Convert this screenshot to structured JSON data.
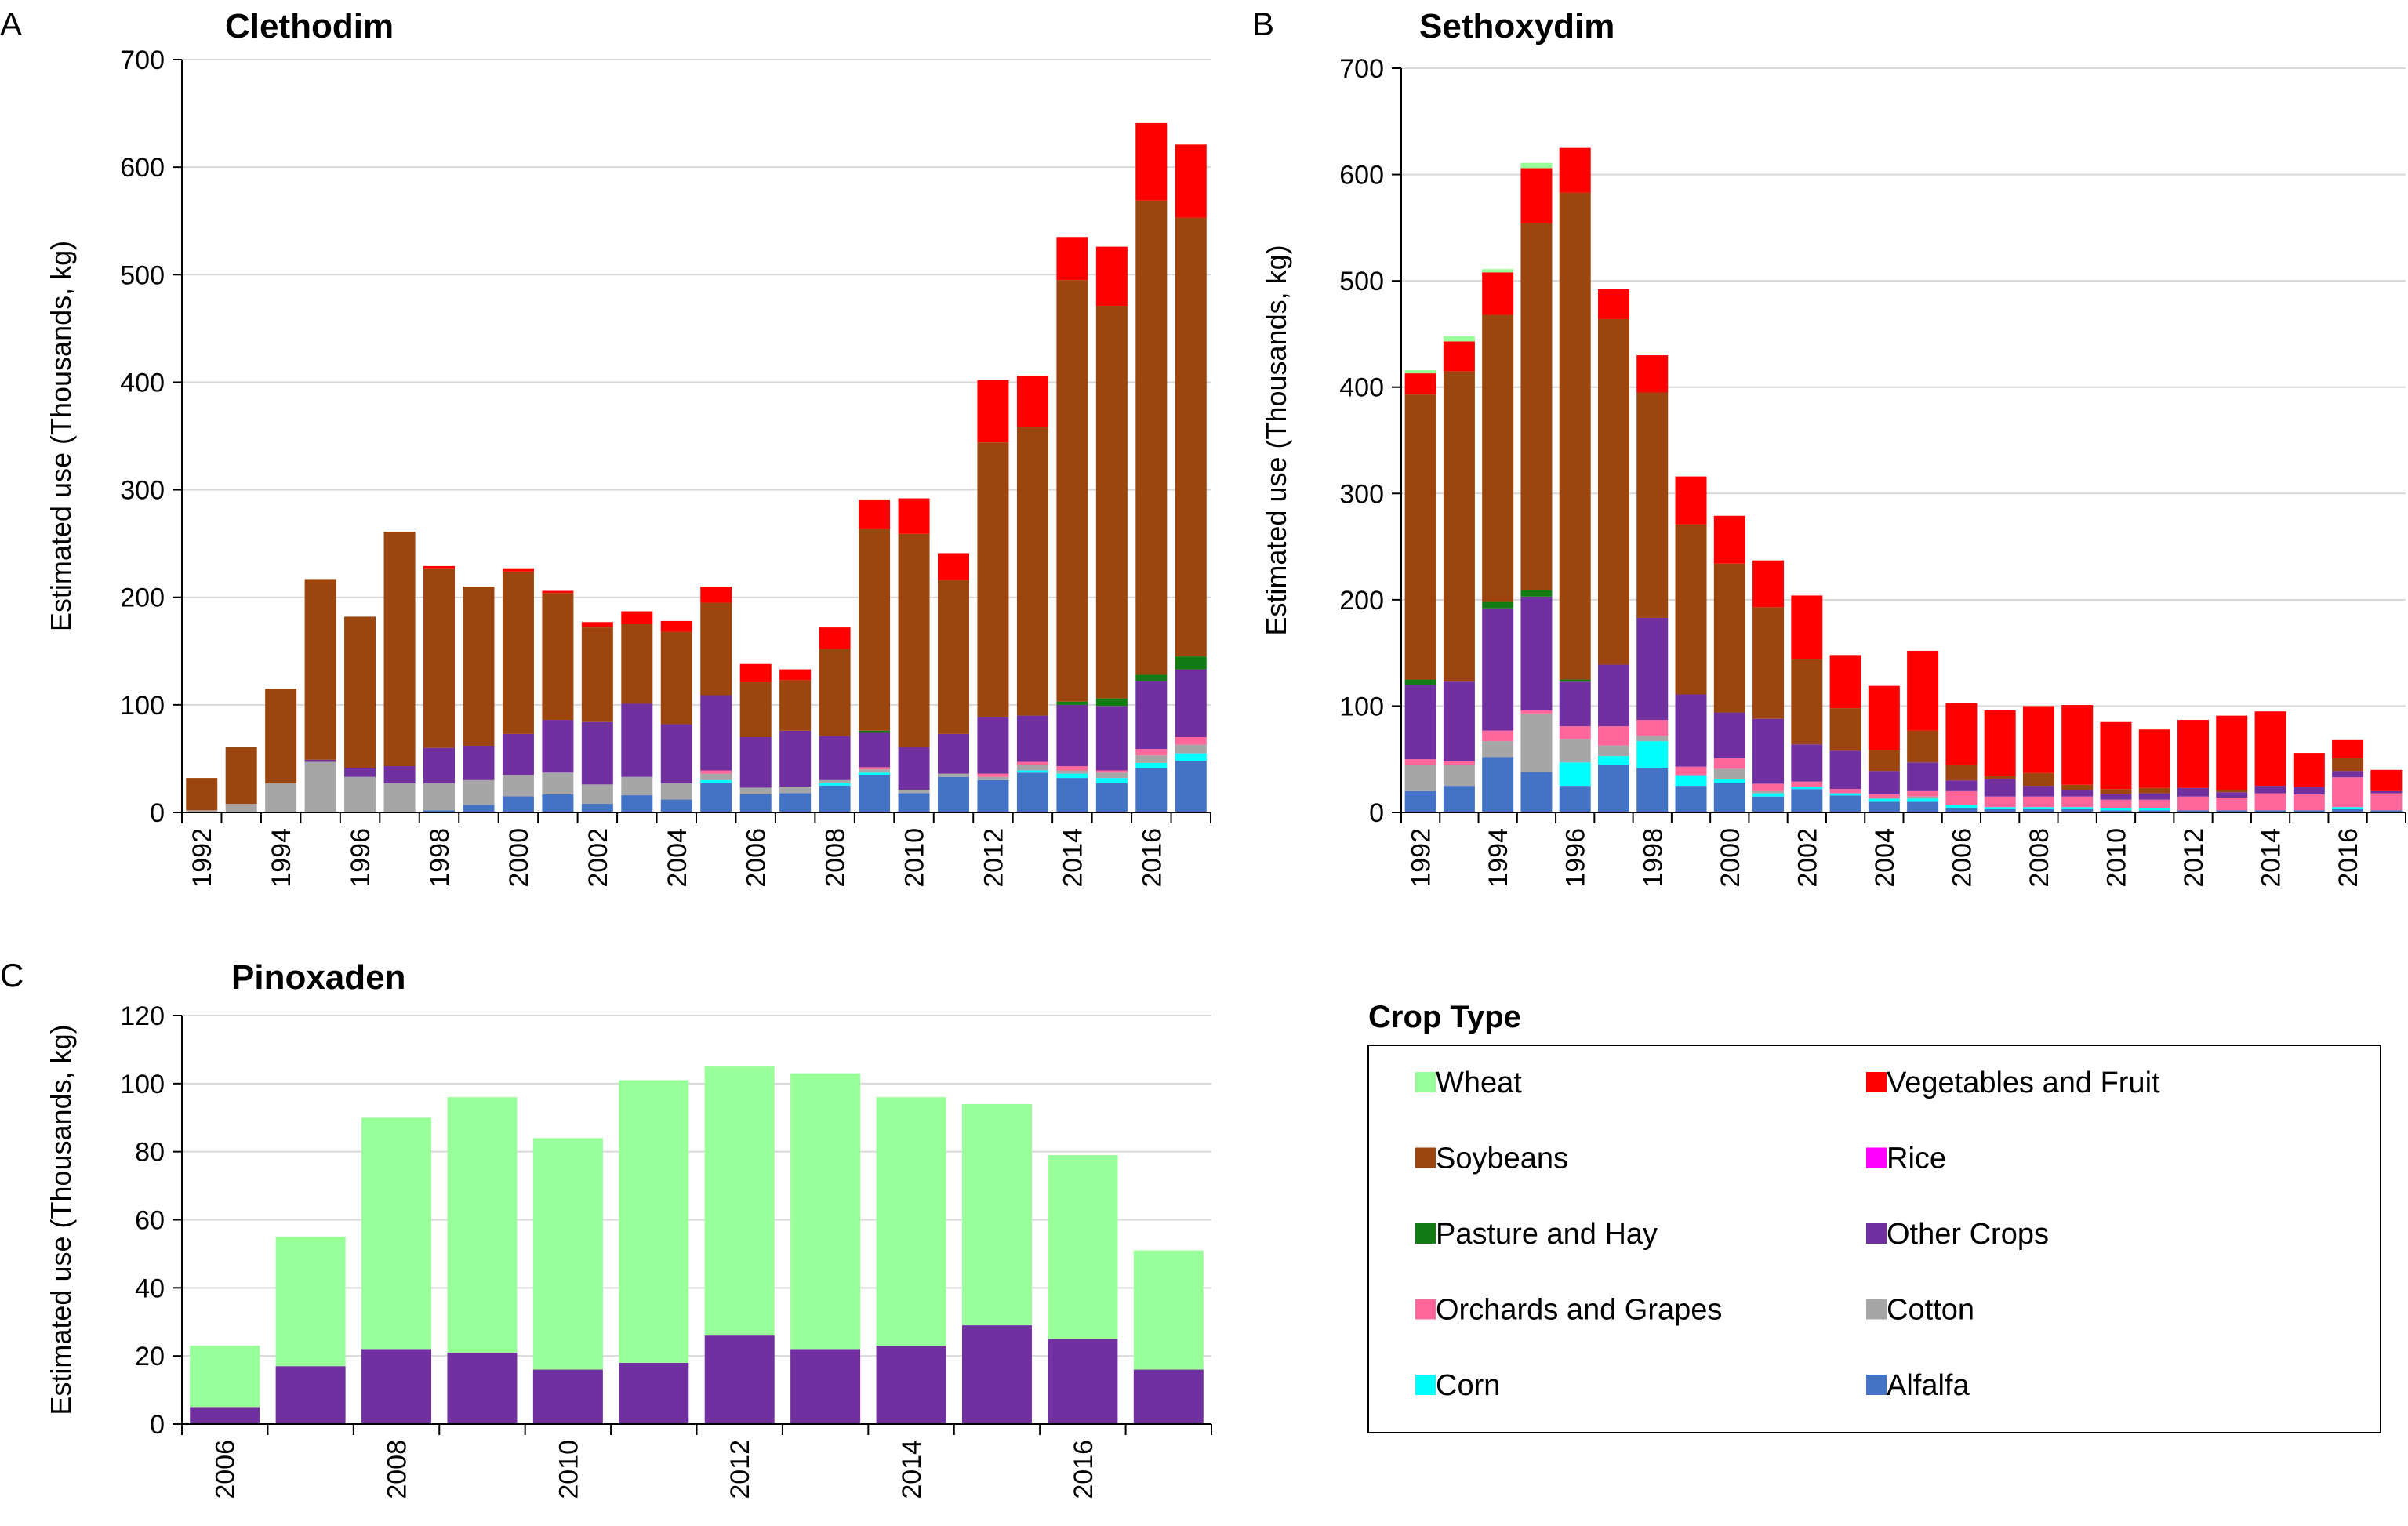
{
  "colors": {
    "Wheat": "#99FF99",
    "Vegetables and Fruit": "#FF0000",
    "Soybeans": "#9C450E",
    "Rice": "#FF00FF",
    "Pasture and Hay": "#137B13",
    "Other Crops": "#7030A0",
    "Orchards and Grapes": "#FF6699",
    "Cotton": "#A6A6A6",
    "Corn": "#00FFFF",
    "Alfalfa": "#4472C4"
  },
  "chart_data": [
    {
      "panel": "A",
      "type": "bar",
      "stacked": true,
      "title": "Clethodim",
      "xlabel": "",
      "ylabel": "Estimated use (Thousands, kg)",
      "ylim": [
        0,
        700
      ],
      "yticks": [
        0,
        100,
        200,
        300,
        400,
        500,
        600,
        700
      ],
      "categories": [
        "1992",
        "1993",
        "1994",
        "1995",
        "1996",
        "1997",
        "1998",
        "1999",
        "2000",
        "2001",
        "2002",
        "2003",
        "2004",
        "2005",
        "2006",
        "2007",
        "2008",
        "2009",
        "2010",
        "2011",
        "2012",
        "2013",
        "2014",
        "2015",
        "2016",
        "2017"
      ],
      "tick_labels": [
        "1992",
        "",
        "1994",
        "",
        "1996",
        "",
        "1998",
        "",
        "2000",
        "",
        "2002",
        "",
        "2004",
        "",
        "2006",
        "",
        "2008",
        "",
        "2010",
        "",
        "2012",
        "",
        "2014",
        "",
        "2016",
        ""
      ],
      "series": [
        {
          "name": "Alfalfa",
          "values": [
            0,
            0,
            0,
            0,
            0,
            0,
            2,
            7,
            15,
            17,
            8,
            16,
            12,
            27,
            17,
            18,
            25,
            35,
            18,
            33,
            30,
            37,
            32,
            27,
            41,
            48
          ]
        },
        {
          "name": "Corn",
          "values": [
            0,
            0,
            0,
            0,
            0,
            0,
            0,
            0,
            0,
            0,
            0,
            0,
            0,
            3,
            0,
            0,
            2,
            2,
            0,
            0,
            0,
            2,
            4,
            5,
            5,
            7
          ]
        },
        {
          "name": "Cotton",
          "values": [
            2,
            8,
            27,
            47,
            33,
            27,
            25,
            23,
            20,
            20,
            18,
            17,
            15,
            6,
            6,
            6,
            3,
            3,
            3,
            3,
            3,
            5,
            3,
            5,
            7,
            8
          ]
        },
        {
          "name": "Orchards and Grapes",
          "values": [
            0,
            0,
            0,
            0,
            0,
            0,
            0,
            0,
            0,
            0,
            0,
            0,
            0,
            3,
            0,
            0,
            0,
            2,
            0,
            0,
            3,
            3,
            4,
            2,
            6,
            7
          ]
        },
        {
          "name": "Other Crops",
          "values": [
            0,
            0,
            0,
            2,
            8,
            16,
            33,
            32,
            38,
            49,
            58,
            68,
            55,
            70,
            47,
            52,
            41,
            32,
            40,
            37,
            53,
            43,
            57,
            60,
            63,
            63
          ]
        },
        {
          "name": "Pasture and Hay",
          "values": [
            0,
            0,
            0,
            0,
            0,
            0,
            0,
            0,
            0,
            0,
            0,
            0,
            0,
            0,
            0,
            0,
            0,
            2,
            0,
            0,
            0,
            0,
            3,
            7,
            6,
            12
          ]
        },
        {
          "name": "Rice",
          "values": [
            0,
            0,
            0,
            0,
            0,
            0,
            0,
            0,
            0,
            0,
            0,
            0,
            0,
            0,
            0,
            0,
            0,
            0,
            0,
            0,
            0,
            0,
            0,
            0,
            0,
            0
          ]
        },
        {
          "name": "Soybeans",
          "values": [
            30,
            53,
            88,
            168,
            141,
            218,
            167,
            148,
            151,
            118,
            88,
            74,
            86,
            86,
            51,
            47,
            81,
            188,
            198,
            143,
            255,
            268,
            392,
            365,
            441,
            408
          ]
        },
        {
          "name": "Vegetables and Fruit",
          "values": [
            0,
            0,
            0,
            0,
            0,
            0,
            2,
            0,
            3,
            2,
            5,
            12,
            10,
            15,
            17,
            10,
            20,
            27,
            33,
            25,
            58,
            48,
            40,
            55,
            72,
            68
          ]
        },
        {
          "name": "Wheat",
          "values": [
            0,
            0,
            0,
            0,
            0,
            0,
            0,
            0,
            0,
            0,
            0,
            0,
            0,
            0,
            0,
            0,
            0,
            0,
            0,
            0,
            0,
            0,
            0,
            0,
            0,
            0
          ]
        }
      ]
    },
    {
      "panel": "B",
      "type": "bar",
      "stacked": true,
      "title": "Sethoxydim",
      "xlabel": "",
      "ylabel": "Estimated use (Thousands, kg)",
      "ylim": [
        0,
        700
      ],
      "yticks": [
        0,
        100,
        200,
        300,
        400,
        500,
        600,
        700
      ],
      "categories": [
        "1992",
        "1993",
        "1994",
        "1995",
        "1996",
        "1997",
        "1998",
        "1999",
        "2000",
        "2001",
        "2002",
        "2003",
        "2004",
        "2005",
        "2006",
        "2007",
        "2008",
        "2009",
        "2010",
        "2011",
        "2012",
        "2013",
        "2014",
        "2015",
        "2016",
        "2017"
      ],
      "tick_labels": [
        "1992",
        "",
        "1994",
        "",
        "1996",
        "",
        "1998",
        "",
        "2000",
        "",
        "2002",
        "",
        "2004",
        "",
        "2006",
        "",
        "2008",
        "",
        "2010",
        "",
        "2012",
        "",
        "2014",
        "",
        "2016",
        ""
      ],
      "series": [
        {
          "name": "Alfalfa",
          "values": [
            20,
            25,
            52,
            38,
            25,
            45,
            42,
            25,
            28,
            15,
            22,
            16,
            10,
            10,
            4,
            3,
            3,
            3,
            2,
            2,
            2,
            2,
            2,
            2,
            3,
            2
          ]
        },
        {
          "name": "Corn",
          "values": [
            0,
            0,
            0,
            0,
            22,
            8,
            25,
            10,
            3,
            3,
            2,
            2,
            3,
            3,
            3,
            2,
            2,
            2,
            2,
            2,
            0,
            0,
            0,
            0,
            2,
            0
          ]
        },
        {
          "name": "Cotton",
          "values": [
            25,
            20,
            15,
            55,
            22,
            10,
            5,
            0,
            10,
            2,
            0,
            0,
            0,
            2,
            0,
            0,
            0,
            0,
            0,
            0,
            0,
            0,
            0,
            0,
            0,
            0
          ]
        },
        {
          "name": "Orchards and Grapes",
          "values": [
            5,
            3,
            10,
            3,
            12,
            18,
            15,
            8,
            10,
            7,
            5,
            4,
            4,
            5,
            13,
            10,
            10,
            10,
            8,
            8,
            13,
            12,
            16,
            15,
            28,
            16
          ]
        },
        {
          "name": "Other Crops",
          "values": [
            70,
            75,
            115,
            107,
            42,
            58,
            96,
            68,
            43,
            61,
            35,
            36,
            22,
            27,
            10,
            16,
            10,
            6,
            5,
            6,
            8,
            5,
            7,
            7,
            6,
            2
          ]
        },
        {
          "name": "Pasture and Hay",
          "values": [
            5,
            0,
            6,
            6,
            2,
            0,
            0,
            0,
            0,
            0,
            0,
            0,
            0,
            0,
            0,
            0,
            0,
            0,
            0,
            0,
            0,
            0,
            0,
            0,
            0,
            0
          ]
        },
        {
          "name": "Rice",
          "values": [
            0,
            0,
            0,
            0,
            0,
            0,
            0,
            0,
            0,
            0,
            0,
            0,
            0,
            0,
            0,
            0,
            0,
            0,
            0,
            0,
            0,
            0,
            0,
            0,
            0,
            0
          ]
        },
        {
          "name": "Soybeans",
          "values": [
            268,
            292,
            270,
            345,
            458,
            325,
            212,
            160,
            140,
            105,
            80,
            40,
            20,
            30,
            15,
            3,
            12,
            5,
            5,
            5,
            0,
            2,
            0,
            0,
            12,
            0
          ]
        },
        {
          "name": "Vegetables and Fruit",
          "values": [
            20,
            28,
            40,
            52,
            42,
            28,
            35,
            45,
            45,
            44,
            60,
            50,
            60,
            75,
            58,
            62,
            63,
            75,
            63,
            55,
            64,
            70,
            70,
            32,
            17,
            20
          ]
        },
        {
          "name": "Wheat",
          "values": [
            3,
            5,
            3,
            5,
            0,
            0,
            0,
            0,
            0,
            0,
            0,
            0,
            0,
            0,
            0,
            0,
            0,
            0,
            0,
            0,
            0,
            0,
            0,
            0,
            0,
            0
          ]
        }
      ]
    },
    {
      "panel": "C",
      "type": "bar",
      "stacked": true,
      "title": "Pinoxaden",
      "xlabel": "",
      "ylabel": "Estimated use (Thousands, kg)",
      "ylim": [
        0,
        120
      ],
      "yticks": [
        0,
        20,
        40,
        60,
        80,
        100,
        120
      ],
      "categories": [
        "2006",
        "2007",
        "2008",
        "2009",
        "2010",
        "2011",
        "2012",
        "2013",
        "2014",
        "2015",
        "2016",
        "2017"
      ],
      "tick_labels": [
        "2006",
        "",
        "2008",
        "",
        "2010",
        "",
        "2012",
        "",
        "2014",
        "",
        "2016",
        ""
      ],
      "series": [
        {
          "name": "Other Crops",
          "values": [
            5,
            17,
            22,
            21,
            16,
            18,
            26,
            22,
            23,
            29,
            25,
            16
          ]
        },
        {
          "name": "Wheat",
          "values": [
            18,
            38,
            68,
            75,
            68,
            83,
            79,
            81,
            73,
            65,
            54,
            35
          ]
        }
      ]
    }
  ],
  "legend": {
    "title": "Crop Type",
    "entries": [
      "Wheat",
      "Vegetables and Fruit",
      "Soybeans",
      "Rice",
      "Pasture and Hay",
      "Other Crops",
      "Orchards and Grapes",
      "Cotton",
      "Corn",
      "Alfalfa"
    ]
  }
}
